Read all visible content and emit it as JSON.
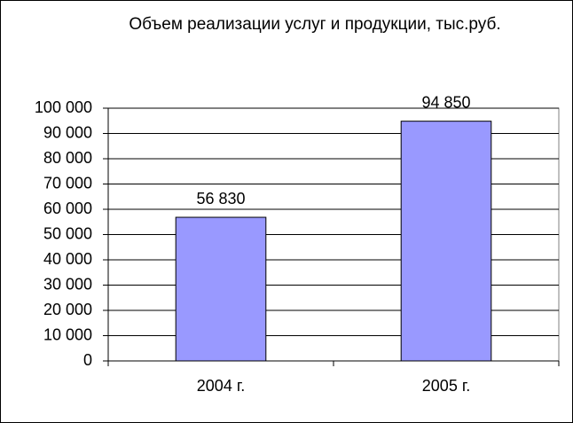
{
  "chart_data": {
    "type": "bar",
    "title": "Объем реализации услуг и продукции, тыс.руб.",
    "categories": [
      "2004 г.",
      "2005 г."
    ],
    "values": [
      56830,
      94850
    ],
    "value_labels": [
      "56 830",
      "94 850"
    ],
    "color": "#9999ff",
    "ylim": [
      0,
      100000
    ],
    "yticks": [
      0,
      {
        "value": 10000,
        "label": "10 000"
      },
      {
        "value": 20000,
        "label": "20 000"
      },
      {
        "value": 30000,
        "label": "30 000"
      },
      {
        "value": 40000,
        "label": "40 000"
      },
      {
        "value": 50000,
        "label": "50 000"
      },
      {
        "value": 60000,
        "label": "60 000"
      },
      {
        "value": 70000,
        "label": "70 000"
      },
      {
        "value": 80000,
        "label": "80 000"
      },
      {
        "value": 90000,
        "label": "90 000"
      },
      {
        "value": 100000,
        "label": "100 000"
      }
    ],
    "grid": true
  }
}
